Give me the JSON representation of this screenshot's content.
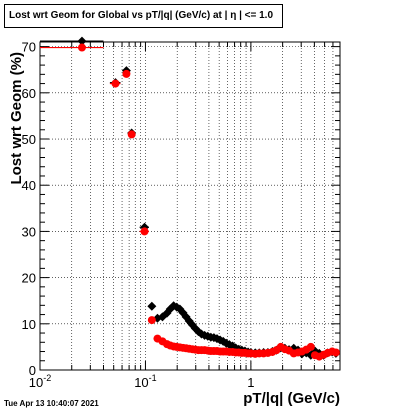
{
  "title": "Lost wrt Geom for Global vs pT/|q| (GeV/c) at |  η | <= 1.0",
  "timestamp": "Tue Apr 13 10:40:07 2021",
  "chart_data": {
    "type": "scatter",
    "title": "Lost wrt Geom for Global vs pT/|q| (GeV/c) at |  η | <= 1.0",
    "xlabel": "pT/|q| (GeV/c)",
    "ylabel": "Lost wrt Geom (%)",
    "xscale": "log",
    "xlim": [
      0.01,
      7
    ],
    "ylim": [
      0,
      71
    ],
    "grid": true,
    "x_tick_labels": [
      {
        "x": 0.01,
        "label": "10",
        "exp": "-2"
      },
      {
        "x": 0.1,
        "label": "10",
        "exp": "-1"
      },
      {
        "x": 1,
        "label": "1",
        "exp": ""
      }
    ],
    "y_ticks": [
      0,
      10,
      20,
      30,
      40,
      50,
      60,
      70
    ],
    "series": [
      {
        "color": "#000000",
        "marker": "diamond",
        "points": [
          [
            0.025,
            71.2
          ],
          [
            0.052,
            62.2
          ],
          [
            0.066,
            64.8
          ],
          [
            0.074,
            51.3
          ],
          [
            0.098,
            30.9
          ],
          [
            0.115,
            13.8
          ],
          [
            0.13,
            11.2
          ],
          [
            0.145,
            11.5
          ],
          [
            0.16,
            12.3
          ],
          [
            0.172,
            13.2
          ],
          [
            0.185,
            13.9
          ],
          [
            0.198,
            13.6
          ],
          [
            0.212,
            13.2
          ],
          [
            0.227,
            12.4
          ],
          [
            0.243,
            11.5
          ],
          [
            0.26,
            10.6
          ],
          [
            0.278,
            9.8
          ],
          [
            0.297,
            9.0
          ],
          [
            0.318,
            8.3
          ],
          [
            0.34,
            7.8
          ],
          [
            0.364,
            7.5
          ],
          [
            0.39,
            7.3
          ],
          [
            0.417,
            7.1
          ],
          [
            0.446,
            7.0
          ],
          [
            0.477,
            6.8
          ],
          [
            0.51,
            6.5
          ],
          [
            0.546,
            6.2
          ],
          [
            0.584,
            5.8
          ],
          [
            0.625,
            5.5
          ],
          [
            0.67,
            5.2
          ],
          [
            0.717,
            4.8
          ],
          [
            0.767,
            4.5
          ],
          [
            0.82,
            4.3
          ],
          [
            0.878,
            4.1
          ],
          [
            0.94,
            3.9
          ],
          [
            1.0,
            3.8
          ],
          [
            1.1,
            3.7
          ],
          [
            1.2,
            3.7
          ],
          [
            1.32,
            3.8
          ],
          [
            1.45,
            3.8
          ],
          [
            1.6,
            4.0
          ],
          [
            1.75,
            4.3
          ],
          [
            1.92,
            4.8
          ],
          [
            2.1,
            4.7
          ],
          [
            2.3,
            4.4
          ],
          [
            2.55,
            4.7
          ],
          [
            2.8,
            4.3
          ],
          [
            3.05,
            3.5
          ],
          [
            3.35,
            3.7
          ],
          [
            3.7,
            3.2
          ],
          [
            4.05,
            4.1
          ],
          [
            4.45,
            3.6
          ],
          [
            4.9,
            3.2
          ],
          [
            5.35,
            3.7
          ],
          [
            5.9,
            3.9
          ],
          [
            6.4,
            3.6
          ]
        ]
      },
      {
        "color": "#ff0000",
        "marker": "circle",
        "points": [
          [
            0.025,
            69.8
          ],
          [
            0.052,
            62.0
          ],
          [
            0.066,
            64.1
          ],
          [
            0.074,
            51.0
          ],
          [
            0.098,
            30.0
          ],
          [
            0.115,
            10.8
          ],
          [
            0.13,
            6.8
          ],
          [
            0.145,
            6.2
          ],
          [
            0.16,
            5.6
          ],
          [
            0.172,
            5.3
          ],
          [
            0.185,
            5.1
          ],
          [
            0.198,
            5.0
          ],
          [
            0.212,
            4.9
          ],
          [
            0.227,
            4.8
          ],
          [
            0.243,
            4.7
          ],
          [
            0.26,
            4.6
          ],
          [
            0.278,
            4.5
          ],
          [
            0.297,
            4.4
          ],
          [
            0.318,
            4.3
          ],
          [
            0.34,
            4.3
          ],
          [
            0.364,
            4.3
          ],
          [
            0.39,
            4.2
          ],
          [
            0.417,
            4.1
          ],
          [
            0.446,
            4.1
          ],
          [
            0.477,
            4.1
          ],
          [
            0.51,
            4.0
          ],
          [
            0.546,
            4.0
          ],
          [
            0.584,
            4.0
          ],
          [
            0.625,
            3.9
          ],
          [
            0.67,
            3.9
          ],
          [
            0.717,
            3.8
          ],
          [
            0.767,
            3.8
          ],
          [
            0.82,
            3.7
          ],
          [
            0.878,
            3.7
          ],
          [
            0.94,
            3.6
          ],
          [
            1.0,
            3.6
          ],
          [
            1.1,
            3.5
          ],
          [
            1.2,
            3.6
          ],
          [
            1.32,
            3.6
          ],
          [
            1.45,
            3.7
          ],
          [
            1.6,
            3.9
          ],
          [
            1.75,
            4.3
          ],
          [
            1.92,
            5.0
          ],
          [
            2.1,
            4.5
          ],
          [
            2.3,
            4.2
          ],
          [
            2.55,
            3.6
          ],
          [
            2.8,
            3.8
          ],
          [
            3.05,
            4.0
          ],
          [
            3.35,
            4.4
          ],
          [
            3.7,
            5.0
          ],
          [
            4.05,
            3.2
          ],
          [
            4.45,
            2.9
          ],
          [
            4.9,
            3.3
          ],
          [
            5.35,
            3.7
          ],
          [
            5.9,
            4.0
          ],
          [
            6.4,
            3.8
          ]
        ]
      }
    ]
  }
}
